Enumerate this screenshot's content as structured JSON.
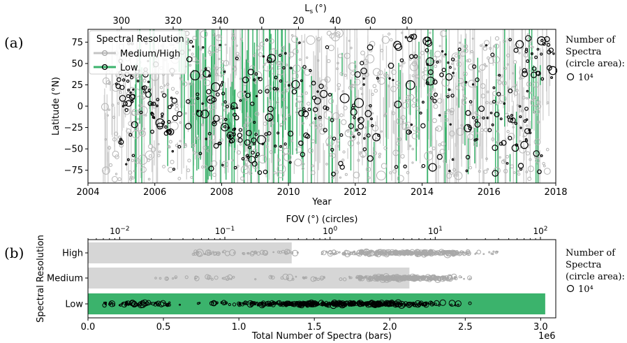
{
  "chart_data": [
    {
      "type": "scatter",
      "panel_label": "(a)",
      "xlabel": "Year",
      "ylabel": "Latitude (°N)",
      "top_xlabel": "L",
      "top_xlabel_sub": "s",
      "top_xlabel_unit": "(°)",
      "xlim": [
        2004,
        2018
      ],
      "ylim": [
        -90,
        90
      ],
      "x_ticks": [
        "2004",
        "2006",
        "2008",
        "2010",
        "2012",
        "2014",
        "2016",
        "2018"
      ],
      "y_ticks": [
        "75",
        "50",
        "25",
        "0",
        "−25",
        "−50",
        "−75"
      ],
      "top_ticks": [
        "300",
        "320",
        "340",
        "0",
        "20",
        "40",
        "60",
        "80"
      ],
      "top_tick_years": [
        2005.0,
        2006.55,
        2007.95,
        2009.2,
        2010.3,
        2011.4,
        2012.45,
        2013.55
      ],
      "legend": {
        "title": "Spectral Resolution",
        "entries": [
          {
            "label": "Medium/High",
            "color": "#c4c4c4"
          },
          {
            "label": "Low",
            "color": "#3bb36c"
          }
        ]
      },
      "size_legend": {
        "title_lines": [
          "Number of",
          "Spectra",
          "(circle area):"
        ],
        "example": "10⁴"
      }
    },
    {
      "type": "bar",
      "panel_label": "(b)",
      "categories": [
        "High",
        "Medium",
        "Low"
      ],
      "values": [
        1350000.0,
        2130000.0,
        3030000.0
      ],
      "bar_colors": [
        "#d6d6d6",
        "#d6d6d6",
        "#3bb36c"
      ],
      "xlabel": "Total Number of Spectra (bars)",
      "ylabel": "Spectral Resolution",
      "x_offset_label": "1e6",
      "xlim": [
        0,
        3100000.0
      ],
      "x_ticks": [
        "0.0",
        "0.5",
        "1.0",
        "1.5",
        "2.0",
        "2.5",
        "3.0"
      ],
      "top_xlabel": "FOV (°) (circles)",
      "top_scale": "log",
      "top_xlim": [
        0.005,
        140
      ],
      "top_ticks": [
        {
          "base": "10",
          "exp": "−2"
        },
        {
          "base": "10",
          "exp": "−1"
        },
        {
          "base": "10",
          "exp": "0"
        },
        {
          "base": "10",
          "exp": "1"
        },
        {
          "base": "10",
          "exp": "2"
        }
      ],
      "fov_ranges": [
        {
          "category": "High",
          "dense_from": 0.5,
          "dense_to": 60,
          "sparse_from": 0.05
        },
        {
          "category": "Medium",
          "dense_from": 1.0,
          "dense_to": 30,
          "sparse_from": 0.02
        },
        {
          "category": "Low",
          "dense_from": 0.03,
          "dense_to": 40,
          "sparse_from": 0.007
        }
      ],
      "size_legend": {
        "title_lines": [
          "Number of",
          "Spectra",
          "(circle area):"
        ],
        "example": "10⁴"
      }
    }
  ]
}
